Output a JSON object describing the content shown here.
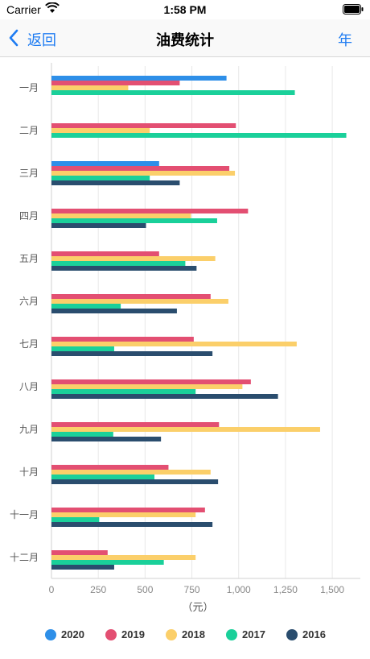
{
  "status_bar": {
    "carrier": "Carrier",
    "time": "1:58 PM"
  },
  "nav": {
    "back_label": "返回",
    "title": "油费统计",
    "year_label": "年"
  },
  "chart_data": {
    "type": "bar",
    "orientation": "horizontal",
    "categories": [
      "一月",
      "二月",
      "三月",
      "四月",
      "五月",
      "六月",
      "七月",
      "八月",
      "九月",
      "十月",
      "十一月",
      "十二月"
    ],
    "series": [
      {
        "name": "2020",
        "color": "#2e8fe8",
        "values": [
          935,
          0,
          575,
          0,
          0,
          0,
          0,
          0,
          0,
          0,
          0,
          0
        ]
      },
      {
        "name": "2019",
        "color": "#e34f72",
        "values": [
          685,
          985,
          950,
          1050,
          575,
          850,
          760,
          1065,
          895,
          625,
          820,
          300
        ]
      },
      {
        "name": "2018",
        "color": "#fbcf6a",
        "values": [
          410,
          525,
          980,
          745,
          875,
          945,
          1310,
          1020,
          1435,
          850,
          770,
          770
        ]
      },
      {
        "name": "2017",
        "color": "#1ad09a",
        "values": [
          1300,
          1575,
          525,
          885,
          715,
          370,
          335,
          770,
          330,
          550,
          255,
          600
        ]
      },
      {
        "name": "2016",
        "color": "#2a4d6e",
        "values": [
          0,
          0,
          685,
          505,
          775,
          670,
          860,
          1210,
          585,
          890,
          860,
          335
        ]
      }
    ],
    "x_ticks": [
      "0",
      "250",
      "500",
      "750",
      "1,000",
      "1,250",
      "1,500"
    ],
    "xlim": [
      0,
      1650
    ],
    "xlabel": "（元）",
    "grid": true,
    "legend_position": "bottom"
  }
}
